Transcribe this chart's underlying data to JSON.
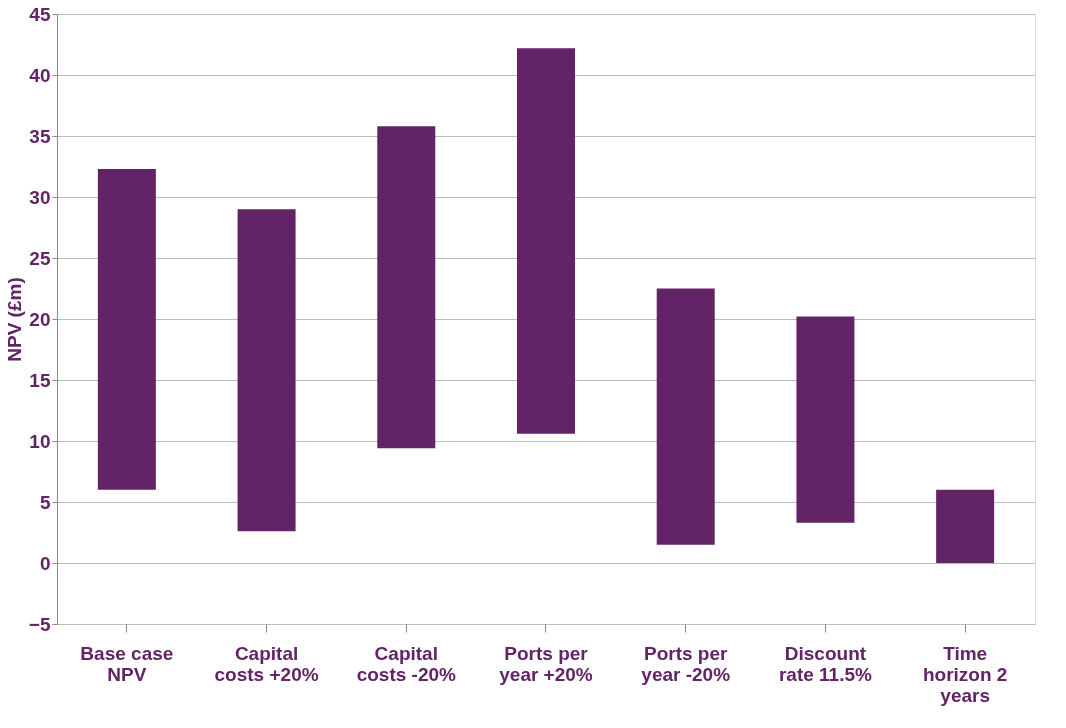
{
  "chart_data": {
    "type": "bar",
    "ylabel": "NPV (£m)",
    "categories": [
      "Base case NPV",
      "Capital costs +20%",
      "Capital costs -20%",
      "Ports per year +20%",
      "Ports per year -20%",
      "Discount rate 11.5%",
      "Time horizon 2 years"
    ],
    "base": [
      6.0,
      2.6,
      9.4,
      10.6,
      1.5,
      3.3,
      0
    ],
    "values": [
      26.3,
      26.4,
      26.4,
      31.6,
      21.0,
      16.9,
      6.0
    ],
    "color": "#622466",
    "ylim": [
      -5,
      45
    ],
    "yticks": [
      -5,
      0,
      5,
      10,
      15,
      20,
      25,
      30,
      35,
      40,
      45
    ],
    "grid": "y"
  }
}
